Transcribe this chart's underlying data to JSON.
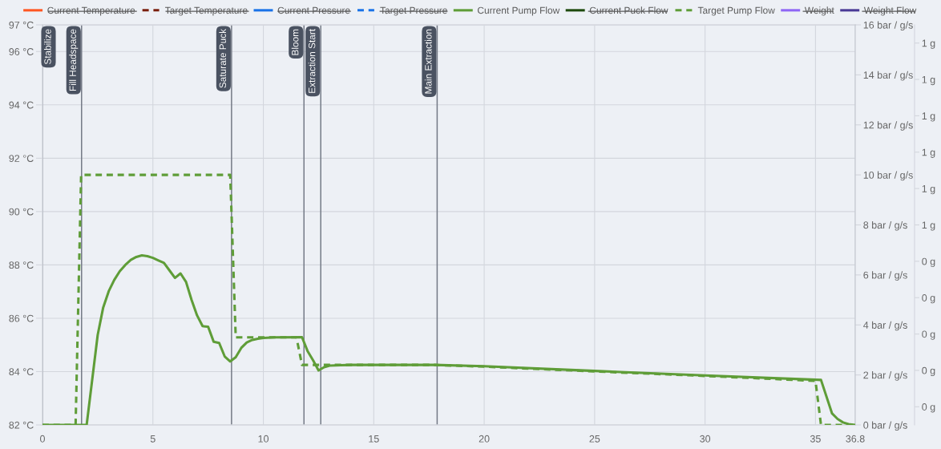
{
  "chart_data": {
    "type": "line",
    "xlim": [
      0,
      36.8
    ],
    "xticks": [
      0,
      5,
      10,
      15,
      20,
      25,
      30,
      35,
      36.8
    ],
    "ylim": [
      82,
      97
    ],
    "yticks": [
      {
        "value": 82,
        "label": "82 °C"
      },
      {
        "value": 84,
        "label": "84 °C"
      },
      {
        "value": 86,
        "label": "86 °C"
      },
      {
        "value": 88,
        "label": "88 °C"
      },
      {
        "value": 90,
        "label": "90 °C"
      },
      {
        "value": 92,
        "label": "92 °C"
      },
      {
        "value": 94,
        "label": "94 °C"
      },
      {
        "value": 96,
        "label": "96 °C"
      },
      {
        "value": 97,
        "label": "97 °C"
      }
    ],
    "y2lim": [
      0,
      16
    ],
    "y2ticks": [
      {
        "value": 0,
        "label": "0 bar / g/s"
      },
      {
        "value": 2,
        "label": "2 bar / g/s"
      },
      {
        "value": 4,
        "label": "4 bar / g/s"
      },
      {
        "value": 6,
        "label": "6 bar / g/s"
      },
      {
        "value": 8,
        "label": "8 bar / g/s"
      },
      {
        "value": 10,
        "label": "10 bar / g/s"
      },
      {
        "value": 12,
        "label": "12 bar / g/s"
      },
      {
        "value": 14,
        "label": "14 bar / g/s"
      },
      {
        "value": 16,
        "label": "16 bar / g/s"
      }
    ],
    "y3lim": [
      -0.05,
      1.05
    ],
    "y3ticks": [
      {
        "value": 0,
        "label": "0 g"
      },
      {
        "value": 0.1,
        "label": "0 g"
      },
      {
        "value": 0.2,
        "label": "0 g"
      },
      {
        "value": 0.3,
        "label": "0 g"
      },
      {
        "value": 0.4,
        "label": "0 g"
      },
      {
        "value": 0.5,
        "label": "1 g"
      },
      {
        "value": 0.6,
        "label": "1 g"
      },
      {
        "value": 0.7,
        "label": "1 g"
      },
      {
        "value": 0.8,
        "label": "1 g"
      },
      {
        "value": 0.9,
        "label": "1 g"
      },
      {
        "value": 1.0,
        "label": "1 g"
      }
    ],
    "grid": true,
    "legend": "top",
    "ref_lines": [
      {
        "axis": "x",
        "value": 0,
        "label": "Stabilize",
        "color": "#767c88"
      },
      {
        "axis": "x",
        "value": 1.77,
        "label": "Fill Headspace",
        "color": "#767c88"
      },
      {
        "axis": "x",
        "value": 8.56,
        "label": "Saturate Puck",
        "color": "#767c88"
      },
      {
        "axis": "x",
        "value": 11.84,
        "label": "Bloom",
        "color": "#767c88"
      },
      {
        "axis": "x",
        "value": 12.6,
        "label": "Extraction Start",
        "color": "#767c88"
      },
      {
        "axis": "x",
        "value": 17.87,
        "label": "Main Extraction",
        "color": "#767c88"
      }
    ],
    "series": [
      {
        "name": "Current Temperature",
        "color": "#ff5722"
      },
      {
        "name": "Target Temperature",
        "color": "#7a1f0e",
        "line_style": "dashed"
      },
      {
        "name": "Current Pressure",
        "color": "#1a73e8"
      },
      {
        "name": "Target Pressure",
        "color": "#1a73e8",
        "line_style": "dashed"
      },
      {
        "name": "Current Pump Flow",
        "color": "#5f9d38",
        "axis": "y2",
        "x": [
          0,
          2.0,
          2.5,
          2.75,
          3.0,
          3.25,
          3.5,
          3.75,
          4.0,
          4.25,
          4.5,
          4.75,
          5.0,
          5.25,
          5.5,
          5.75,
          6.0,
          6.25,
          6.5,
          6.75,
          7.0,
          7.25,
          7.5,
          7.75,
          8.0,
          8.25,
          8.5,
          8.75,
          9.0,
          9.25,
          9.5,
          9.75,
          10.0,
          10.5,
          11.75,
          12.0,
          12.25,
          12.5,
          12.75,
          13.0,
          13.5,
          14.0,
          17.75,
          20.0,
          25.0,
          30.0,
          35.25,
          35.75,
          36.0,
          36.25,
          36.5,
          36.8
        ],
        "values": [
          0,
          0,
          3.6,
          4.7,
          5.35,
          5.8,
          6.15,
          6.4,
          6.6,
          6.72,
          6.78,
          6.75,
          6.68,
          6.58,
          6.48,
          6.18,
          5.88,
          6.06,
          5.72,
          5.0,
          4.38,
          3.95,
          3.93,
          3.33,
          3.28,
          2.74,
          2.54,
          2.71,
          3.08,
          3.3,
          3.4,
          3.45,
          3.48,
          3.5,
          3.51,
          2.96,
          2.59,
          2.18,
          2.31,
          2.37,
          2.39,
          2.4,
          2.4,
          2.35,
          2.16,
          1.98,
          1.8,
          0.46,
          0.24,
          0.1,
          0.03,
          0
        ]
      },
      {
        "name": "Current Puck Flow",
        "color": "#1e4a0e"
      },
      {
        "name": "Target Pump Flow",
        "color": "#5f9d38",
        "line_style": "dashed",
        "axis": "y2",
        "x": [
          0,
          1.5,
          1.75,
          8.5,
          8.75,
          11.5,
          11.75,
          17.75,
          20.0,
          25.0,
          30.0,
          35.0,
          35.25,
          36.8
        ],
        "values": [
          0,
          0,
          10,
          10,
          3.5,
          3.5,
          2.4,
          2.4,
          2.33,
          2.14,
          1.96,
          1.76,
          0,
          0
        ]
      },
      {
        "name": "Weight",
        "color": "#8f66f5"
      },
      {
        "name": "Weight Flow",
        "color": "#4a3a96"
      }
    ]
  }
}
